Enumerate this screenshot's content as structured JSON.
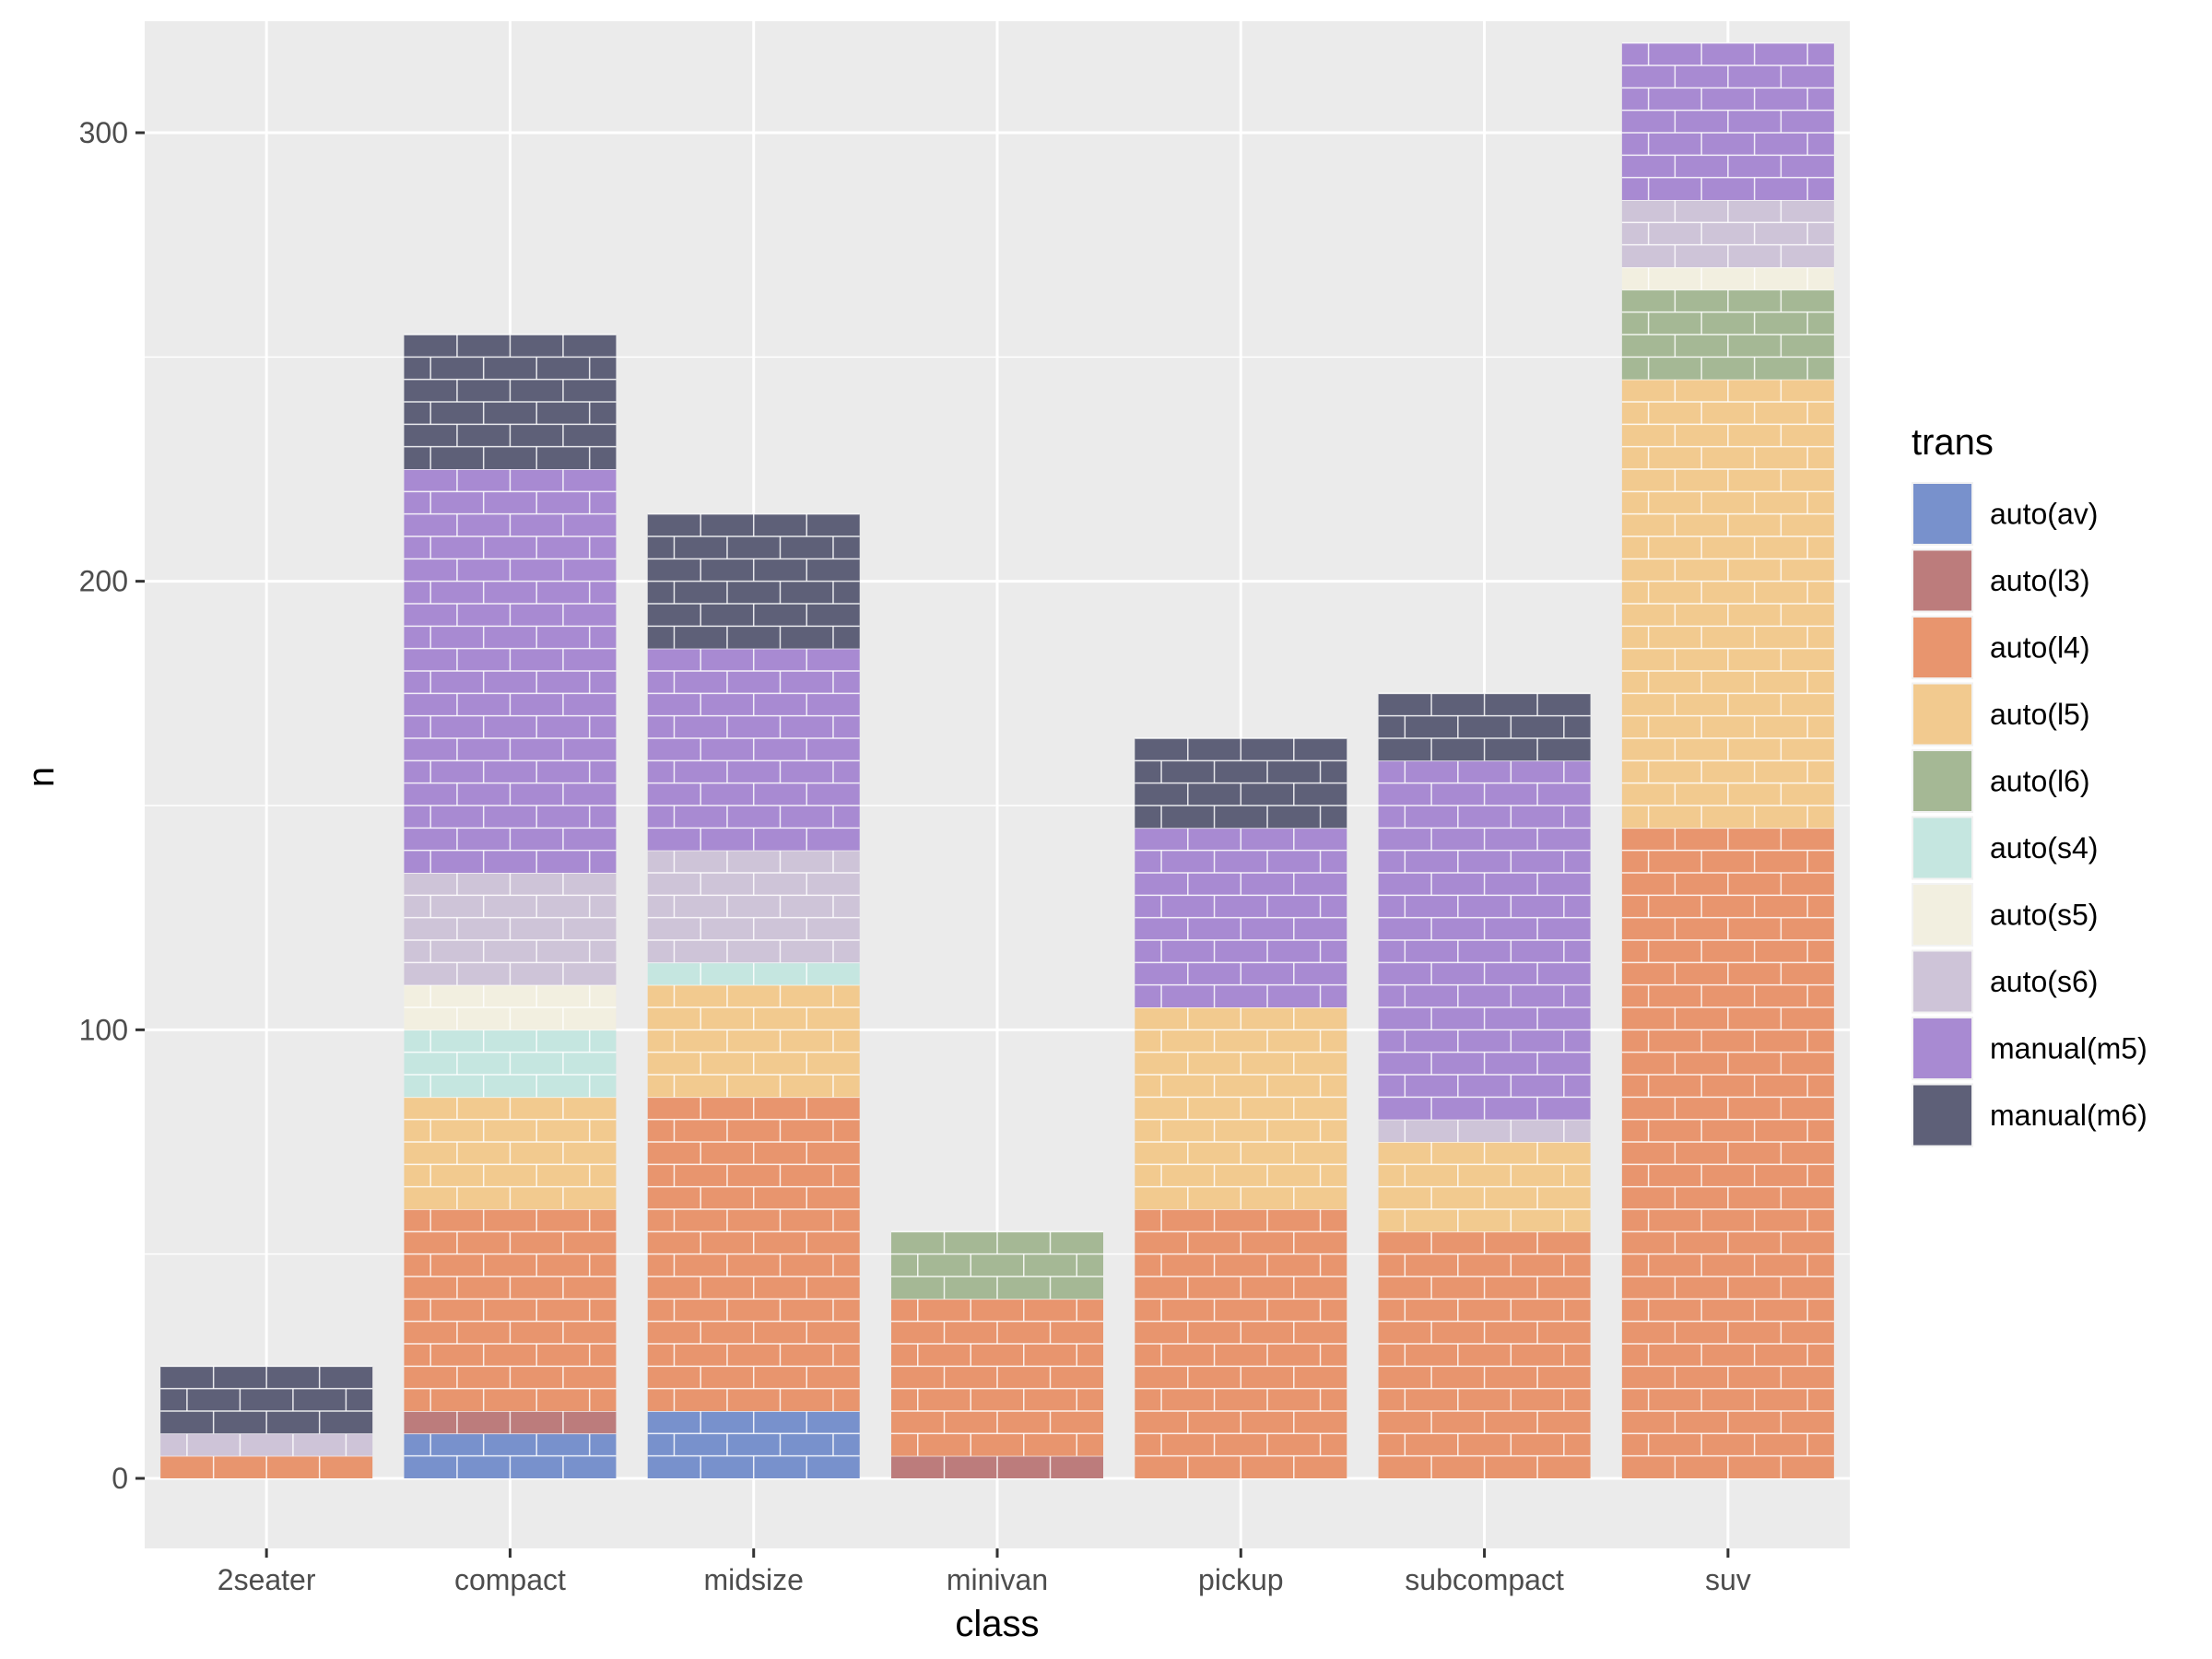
{
  "chart_data": {
    "type": "bar",
    "style": "waffle-stacked",
    "title": "",
    "xlabel": "class",
    "ylabel": "n",
    "ylim": [
      -15,
      325
    ],
    "yticks": [
      0,
      100,
      200,
      300
    ],
    "categories": [
      "2seater",
      "compact",
      "midsize",
      "minivan",
      "pickup",
      "subcompact",
      "suv"
    ],
    "series": [
      {
        "name": "auto(av)",
        "color": "#7891CC",
        "values": [
          0,
          10,
          15,
          0,
          0,
          0,
          0
        ]
      },
      {
        "name": "auto(l3)",
        "color": "#BC7C7C",
        "values": [
          0,
          5,
          0,
          5,
          0,
          0,
          0
        ]
      },
      {
        "name": "auto(l4)",
        "color": "#E8956E",
        "values": [
          5,
          45,
          70,
          35,
          60,
          55,
          145
        ]
      },
      {
        "name": "auto(l5)",
        "color": "#F2CA8F",
        "values": [
          0,
          25,
          25,
          0,
          45,
          20,
          100
        ]
      },
      {
        "name": "auto(l6)",
        "color": "#A5B895",
        "values": [
          0,
          0,
          0,
          15,
          0,
          0,
          20
        ]
      },
      {
        "name": "auto(s4)",
        "color": "#C5E6E0",
        "values": [
          0,
          15,
          5,
          0,
          0,
          0,
          0
        ]
      },
      {
        "name": "auto(s5)",
        "color": "#F2EFE0",
        "values": [
          0,
          10,
          0,
          0,
          0,
          0,
          5
        ]
      },
      {
        "name": "auto(s6)",
        "color": "#CEC4D8",
        "values": [
          5,
          25,
          25,
          0,
          0,
          5,
          15
        ]
      },
      {
        "name": "manual(m5)",
        "color": "#A88AD2",
        "values": [
          0,
          90,
          45,
          0,
          40,
          80,
          35
        ]
      },
      {
        "name": "manual(m6)",
        "color": "#5E6078",
        "values": [
          15,
          30,
          30,
          0,
          20,
          15,
          0
        ]
      }
    ],
    "legend": {
      "title": "trans",
      "position": "right"
    },
    "grid": true
  }
}
